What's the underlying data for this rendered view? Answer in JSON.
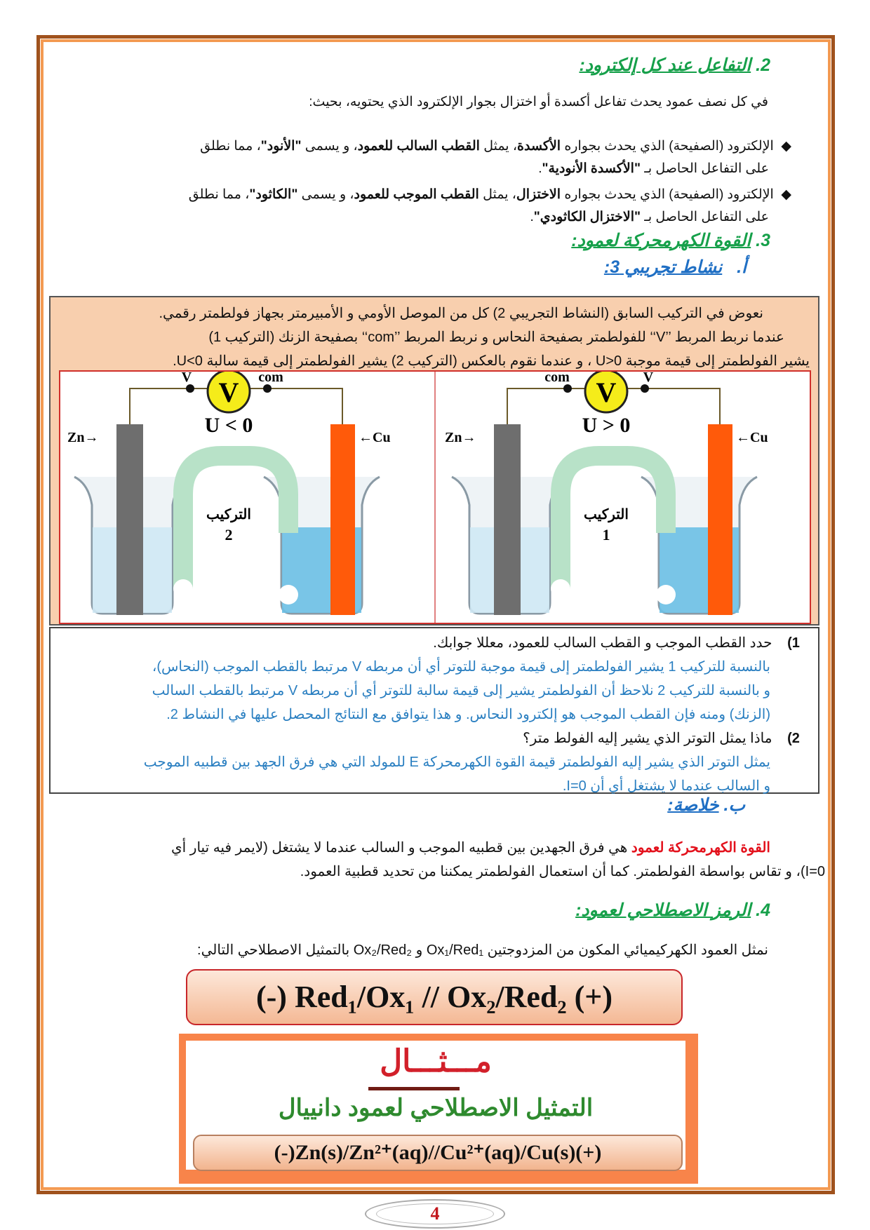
{
  "section2": {
    "number": "2.",
    "title": "التفاعل عند كل إلكترود:",
    "intro": "في كل نصف عمود يحدث تفاعل أكسدة أو اختزال بجوار الإلكترود الذي يحتويه، بحيث:",
    "bullets": [
      {
        "l1a": "الإلكترود (الصفيحة) الذي يحدث بجواره ",
        "l1b": "الأكسدة",
        "l1c": "، يمثل ",
        "l1d": "القطب السالب للعمود",
        "l1e": "، و يسمى ",
        "l1f": "\"الأنود\"",
        "l1g": "، مما نطلق",
        "l2a": "على التفاعل الحاصل بـ ",
        "l2b": "\"الأكسدة الأنودية\"",
        "l2c": "."
      },
      {
        "l1a": "الإلكترود (الصفيحة) الذي يحدث بجواره ",
        "l1b": "الاختزال",
        "l1c": "، يمثل ",
        "l1d": "القطب الموجب للعمود",
        "l1e": "، و يسمى ",
        "l1f": "\"الكاثود\"",
        "l1g": "، مما نطلق",
        "l2a": "على التفاعل الحاصل بـ ",
        "l2b": "\"الاختزال الكاثودي\"",
        "l2c": "."
      }
    ]
  },
  "section3": {
    "number": "3.",
    "title": "القوة الكهرمحركة لعمود:",
    "sub_a": {
      "letter": "أ.",
      "title": "نشاط تجريبي 3:"
    }
  },
  "activity": {
    "lines": [
      "نعوض في التركيب السابق (النشاط التجريبي 2) كل من الموصل الأومي و الأمبيرمتر بجهاز فولطمتر رقمي.",
      "عندما نربط المربط ’’V‘‘ للفولطمتر بصفيحة النحاس و نربط المربط ’’com‘‘ بصفيحة الزنك (التركيب 1)",
      "يشير الفولطمتر إلى قيمة موجبة U>0 ، و عندما نقوم بالعكس (التركيب 2) يشير الفولطمتر إلى قيمة سالبة U<0."
    ]
  },
  "diagram": {
    "left": {
      "v": "V",
      "com": "com",
      "meter": "V",
      "u": "U < 0",
      "zn": "Zn→",
      "cu": "←Cu",
      "label": "التركيب",
      "num": "2"
    },
    "right": {
      "v": "V",
      "com": "com",
      "meter": "V",
      "u": "U > 0",
      "zn": "Zn→",
      "cu": "←Cu",
      "label": "التركيب",
      "num": "1"
    },
    "colors": {
      "zinc": "#6e6e6e",
      "copper": "#ff5a0a",
      "meter": "#f5ec1a",
      "solution": "#6cc0e6"
    }
  },
  "questions": [
    {
      "num": "1)",
      "q": "حدد القطب الموجب و القطب السالب للعمود، معللا جوابك.",
      "a": [
        "بالنسبة للتركيب 1 يشير الفولطمتر إلى قيمة موجبة للتوتر أي أن مربطه V مرتبط بالقطب الموجب (النحاس)،",
        "و بالنسبة للتركيب 2 نلاحظ أن الفولطمتر يشير إلى قيمة سالبة للتوتر أي أن مربطه V مرتبط بالقطب السالب",
        "(الزنك) ومنه فإن القطب الموجب هو إلكترود النحاس. و هذا يتوافق مع النتائج المحصل عليها في النشاط 2."
      ]
    },
    {
      "num": "2)",
      "q": "ماذا يمثل التوتر الذي يشير إليه الفولط متر؟",
      "a": [
        "يمثل التوتر الذي يشير إليه الفولطمتر قيمة القوة الكهرمحركة E للمولد التي هي فرق الجهد بين قطبيه الموجب",
        "و السالب عندما لا يشتغل أي أن I=0."
      ]
    }
  ],
  "sub_b": {
    "letter": "ب.",
    "title": "خلاصة:"
  },
  "summary": {
    "term": "القوة الكهرمحركة لعمود",
    "l1": " هي فرق الجهدين بين قطبيه الموجب و السالب عندما لا يشتغل (لايمر فيه تيار أي",
    "l2": "I=0)، و تقاس بواسطة الفولطمتر. كما أن استعمال الفولطمتر يمكننا من تحديد قطبية العمود."
  },
  "section4": {
    "number": "4.",
    "title": "الرمز الاصطلاحي لعمود:",
    "intro": "نمثل العمود الكهركيميائي المكون من المزدوجتين Ox₁/Red₁ و Ox₂/Red₂ بالتمثيل الاصطلاحي التالي:",
    "formula": "(-) Red₁/Ox₁ // Ox₂/Red₂ (+)"
  },
  "example": {
    "title": "مـــثـــال",
    "subtitle": "التمثيل الاصطلاحي لعمود دانييال",
    "formula": "(-)Zn(s)/Zn²⁺(aq)//Cu²⁺(aq)/Cu(s)(+)"
  },
  "page_number": "4"
}
